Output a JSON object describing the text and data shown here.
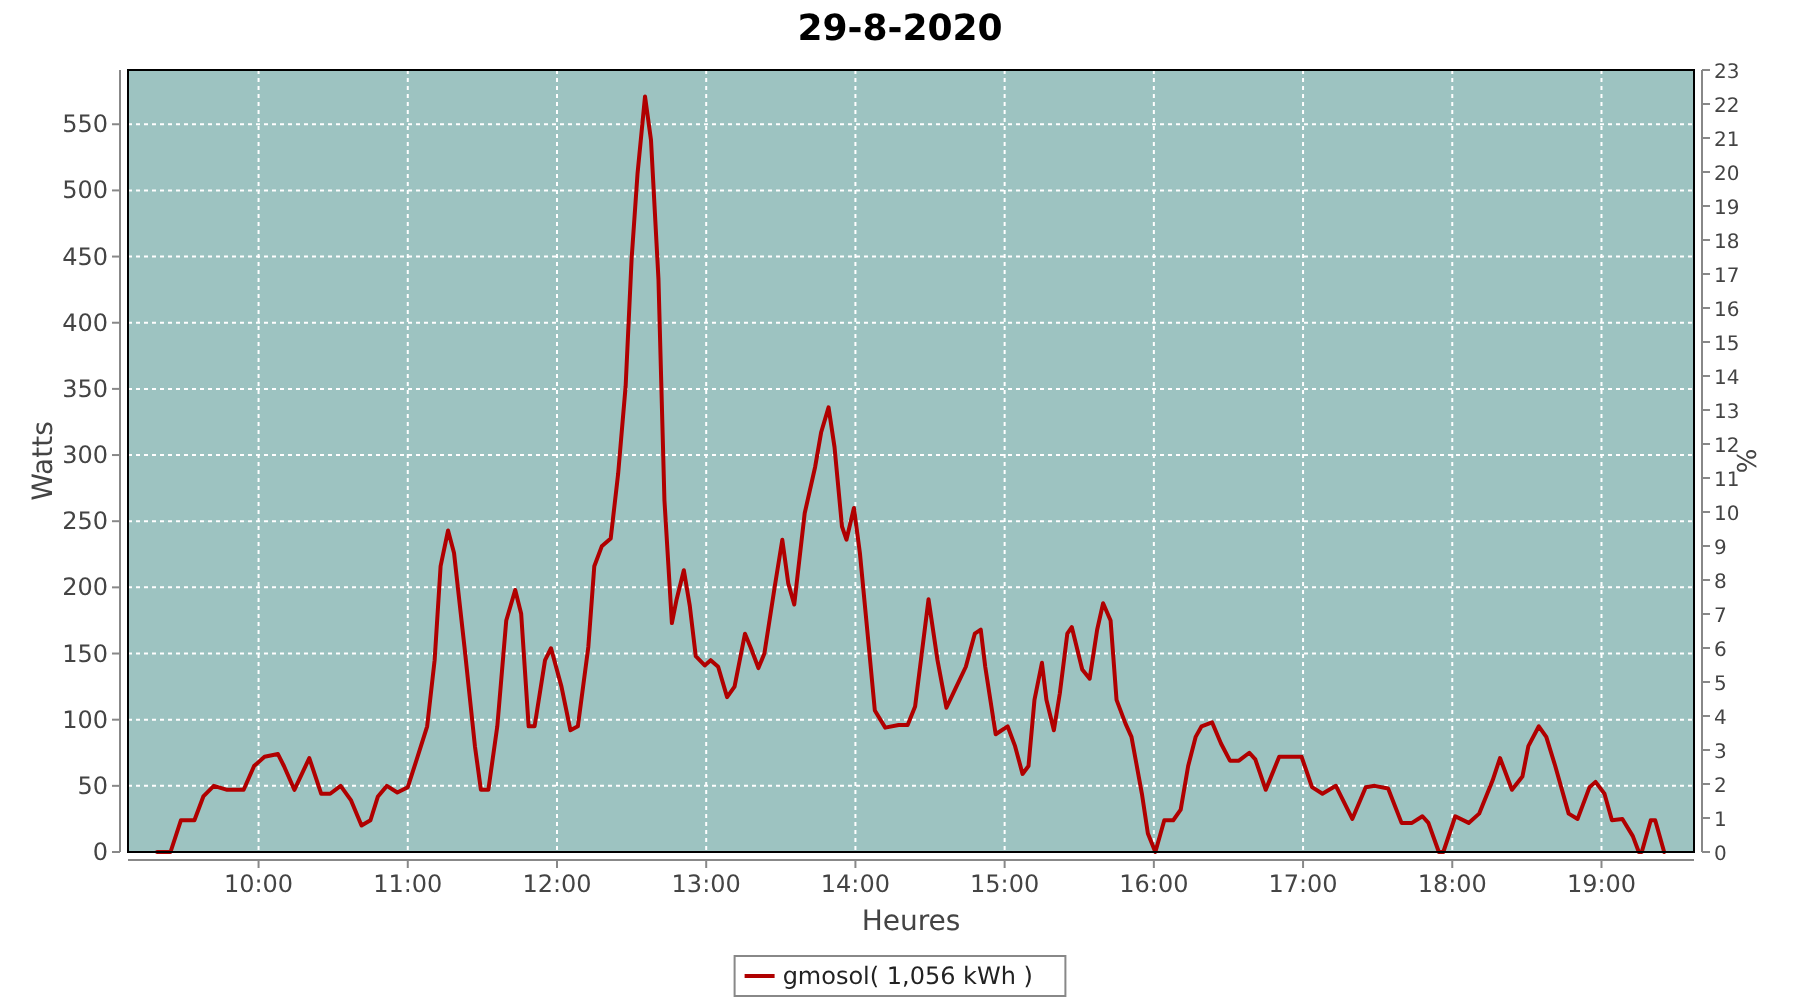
{
  "chart_data": {
    "type": "line",
    "title": "29-8-2020",
    "xlabel": "Heures",
    "ylabel": "Watts",
    "y2label": "%",
    "xlim": [
      9.125,
      19.62
    ],
    "xticks": [
      {
        "value": 10,
        "label": "10:00"
      },
      {
        "value": 11,
        "label": "11:00"
      },
      {
        "value": 12,
        "label": "12:00"
      },
      {
        "value": 13,
        "label": "13:00"
      },
      {
        "value": 14,
        "label": "14:00"
      },
      {
        "value": 15,
        "label": "15:00"
      },
      {
        "value": 16,
        "label": "16:00"
      },
      {
        "value": 17,
        "label": "17:00"
      },
      {
        "value": 18,
        "label": "18:00"
      },
      {
        "value": 19,
        "label": "19:00"
      }
    ],
    "ylim": [
      0,
      591
    ],
    "yticks": [
      0,
      50,
      100,
      150,
      200,
      250,
      300,
      350,
      400,
      450,
      500,
      550
    ],
    "y2lim": [
      0,
      23
    ],
    "y2ticks": [
      0,
      1,
      2,
      3,
      4,
      5,
      6,
      7,
      8,
      9,
      10,
      11,
      12,
      13,
      14,
      15,
      16,
      17,
      18,
      19,
      20,
      21,
      22,
      23
    ],
    "grid": true,
    "legend": "bottom",
    "marker": "none",
    "line_style": "solid",
    "series": [
      {
        "name": "gmosol( 1,056 kWh )",
        "color": "#b00000",
        "x": [
          9.32,
          9.41,
          9.48,
          9.57,
          9.63,
          9.7,
          9.79,
          9.9,
          9.97,
          10.04,
          10.13,
          10.17,
          10.24,
          10.34,
          10.42,
          10.48,
          10.55,
          10.62,
          10.69,
          10.75,
          10.8,
          10.86,
          10.93,
          11.0,
          11.06,
          11.13,
          11.18,
          11.22,
          11.27,
          11.31,
          11.38,
          11.45,
          11.49,
          11.54,
          11.6,
          11.66,
          11.72,
          11.76,
          11.81,
          11.85,
          11.92,
          11.96,
          12.03,
          12.09,
          12.14,
          12.21,
          12.25,
          12.3,
          12.36,
          12.41,
          12.46,
          12.5,
          12.54,
          12.59,
          12.63,
          12.68,
          12.72,
          12.77,
          12.8,
          12.85,
          12.89,
          12.93,
          12.99,
          13.03,
          13.08,
          13.14,
          13.19,
          13.26,
          13.3,
          13.35,
          13.39,
          13.46,
          13.51,
          13.55,
          13.59,
          13.66,
          13.73,
          13.77,
          13.82,
          13.86,
          13.91,
          13.94,
          13.99,
          14.03,
          14.09,
          14.13,
          14.2,
          14.29,
          14.35,
          14.4,
          14.45,
          14.49,
          14.55,
          14.61,
          14.66,
          14.74,
          14.8,
          14.84,
          14.87,
          14.94,
          15.02,
          15.07,
          15.12,
          15.16,
          15.2,
          15.25,
          15.28,
          15.33,
          15.37,
          15.42,
          15.45,
          15.52,
          15.57,
          15.62,
          15.66,
          15.71,
          15.75,
          15.81,
          15.85,
          15.92,
          15.96,
          16.01,
          16.07,
          16.13,
          16.18,
          16.23,
          16.28,
          16.32,
          16.39,
          16.45,
          16.51,
          16.57,
          16.64,
          16.68,
          16.75,
          16.84,
          16.9,
          16.99,
          17.06,
          17.13,
          17.22,
          17.33,
          17.42,
          17.48,
          17.57,
          17.66,
          17.73,
          17.8,
          17.84,
          17.91,
          17.94,
          18.02,
          18.11,
          18.18,
          18.27,
          18.32,
          18.4,
          18.47,
          18.51,
          18.58,
          18.63,
          18.69,
          18.78,
          18.84,
          18.92,
          18.96,
          19.02,
          19.07,
          19.14,
          19.21,
          19.25,
          19.27,
          19.33,
          19.36,
          19.42
        ],
        "values": [
          0,
          0,
          24,
          24,
          42,
          50,
          47,
          47,
          65,
          72,
          74,
          65,
          47,
          71,
          44,
          44,
          50,
          39,
          20,
          24,
          42,
          50,
          45,
          49,
          70,
          95,
          145,
          216,
          243,
          226,
          155,
          80,
          47,
          47,
          95,
          175,
          198,
          180,
          95,
          95,
          145,
          154,
          125,
          92,
          95,
          155,
          216,
          231,
          237,
          286,
          352,
          448,
          513,
          571,
          538,
          433,
          266,
          173,
          190,
          213,
          186,
          148,
          141,
          145,
          140,
          117,
          125,
          165,
          154,
          139,
          150,
          201,
          236,
          203,
          187,
          256,
          291,
          317,
          336,
          306,
          246,
          236,
          260,
          226,
          155,
          107,
          94,
          96,
          96,
          110,
          155,
          191,
          145,
          109,
          121,
          140,
          165,
          168,
          140,
          89,
          95,
          80,
          59,
          65,
          115,
          143,
          115,
          92,
          120,
          165,
          170,
          138,
          131,
          168,
          188,
          175,
          115,
          97,
          87,
          44,
          14,
          0,
          24,
          24,
          32,
          65,
          87,
          95,
          98,
          82,
          69,
          69,
          75,
          70,
          47,
          72,
          72,
          72,
          49,
          44,
          50,
          25,
          49,
          50,
          48,
          22,
          22,
          27,
          22,
          0,
          0,
          27,
          22,
          29,
          54,
          71,
          47,
          57,
          80,
          95,
          87,
          65,
          29,
          25,
          49,
          53,
          44,
          24,
          25,
          12,
          0,
          0,
          24,
          24,
          0
        ]
      }
    ]
  }
}
